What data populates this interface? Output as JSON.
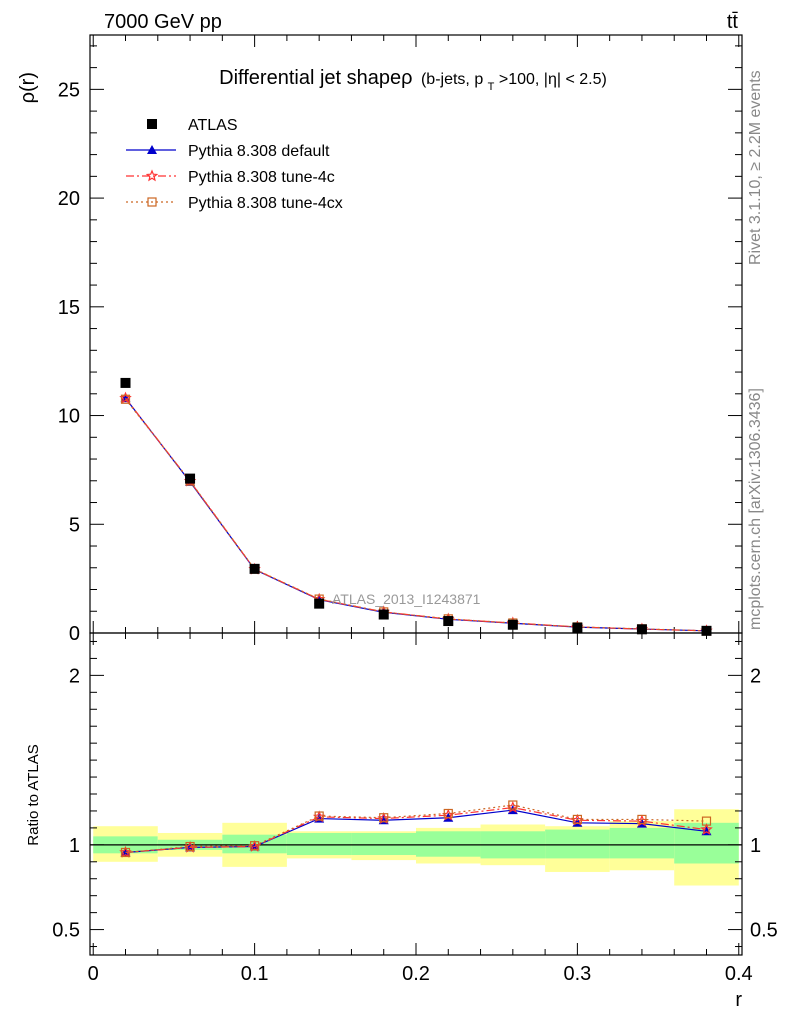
{
  "header": {
    "left": "7000 GeV pp",
    "right": "tt̄",
    "side_rivet": "Rivet 3.1.10, ≥ 2.2M events",
    "side_mcplots": "mcplots.cern.ch [arXiv:1306.3436]",
    "watermark": "ATLAS_2013_I1243871"
  },
  "chart_data": {
    "type": "scatter",
    "title_main": "Differential jet shapeρ",
    "title_sub": "(b-jets, p",
    "title_sub_sub": "T",
    "title_sub_tail": ">100, |η| < 2.5)",
    "ylabel": "ρ(r)",
    "ratio_ylabel": "Ratio to ATLAS",
    "xlabel": "r",
    "xlim": [
      -0.002,
      0.402
    ],
    "ylim": [
      0,
      27.5
    ],
    "ratio_ylim": [
      0.35,
      2.25
    ],
    "x_ticks": [
      "0",
      "0.1",
      "0.2",
      "0.3",
      "0.4"
    ],
    "y_ticks": [
      "0",
      "5",
      "10",
      "15",
      "20",
      "25"
    ],
    "ratio_ticks": [
      "0.5",
      "1",
      "2"
    ],
    "legend_position": "top-left",
    "bin_edges": [
      0.0,
      0.04,
      0.08,
      0.12,
      0.16,
      0.2,
      0.24,
      0.28,
      0.32,
      0.36,
      0.4
    ],
    "x": [
      0.02,
      0.06,
      0.1,
      0.14,
      0.18,
      0.22,
      0.26,
      0.3,
      0.34,
      0.38
    ],
    "ratio_band_inner": [
      [
        0.95,
        1.05
      ],
      [
        0.97,
        1.03
      ],
      [
        0.95,
        1.06
      ],
      [
        0.94,
        1.07
      ],
      [
        0.94,
        1.07
      ],
      [
        0.93,
        1.08
      ],
      [
        0.92,
        1.08
      ],
      [
        0.92,
        1.09
      ],
      [
        0.92,
        1.1
      ],
      [
        0.89,
        1.13
      ]
    ],
    "ratio_band_outer": [
      [
        0.9,
        1.11
      ],
      [
        0.93,
        1.07
      ],
      [
        0.87,
        1.13
      ],
      [
        0.92,
        1.08
      ],
      [
        0.91,
        1.08
      ],
      [
        0.89,
        1.1
      ],
      [
        0.88,
        1.12
      ],
      [
        0.84,
        1.11
      ],
      [
        0.85,
        1.14
      ],
      [
        0.76,
        1.21
      ]
    ],
    "series": [
      {
        "name": "ATLAS",
        "color": "#000000",
        "marker": "square",
        "values": [
          11.5,
          7.1,
          2.95,
          1.35,
          0.85,
          0.55,
          0.38,
          0.25,
          0.17,
          0.1
        ],
        "ratio": [
          1.0,
          1.0,
          1.0,
          1.0,
          1.0,
          1.0,
          1.0,
          1.0,
          1.0,
          1.0
        ]
      },
      {
        "name": "Pythia 8.308 default",
        "color": "#0000cc",
        "marker": "triangle",
        "dash": "",
        "values": [
          10.8,
          6.95,
          2.92,
          1.53,
          0.95,
          0.63,
          0.45,
          0.27,
          0.18,
          0.1
        ],
        "ratio": [
          0.955,
          0.985,
          0.99,
          1.155,
          1.145,
          1.16,
          1.205,
          1.13,
          1.125,
          1.08
        ]
      },
      {
        "name": "Pythia 8.308 tune-4c",
        "color": "#ff3333",
        "marker": "star",
        "dash": "8,3,2,3",
        "values": [
          10.8,
          6.98,
          2.93,
          1.55,
          0.97,
          0.64,
          0.46,
          0.28,
          0.18,
          0.1
        ],
        "ratio": [
          0.955,
          0.985,
          0.99,
          1.165,
          1.155,
          1.175,
          1.22,
          1.145,
          1.14,
          1.09
        ]
      },
      {
        "name": "Pythia 8.308 tune-4cx",
        "color": "#cc6622",
        "marker": "square-open",
        "dash": "2,3",
        "values": [
          10.75,
          6.99,
          2.94,
          1.56,
          0.97,
          0.65,
          0.46,
          0.28,
          0.19,
          0.1
        ],
        "ratio": [
          0.955,
          0.99,
          0.995,
          1.17,
          1.16,
          1.185,
          1.235,
          1.15,
          1.15,
          1.14
        ]
      }
    ]
  }
}
